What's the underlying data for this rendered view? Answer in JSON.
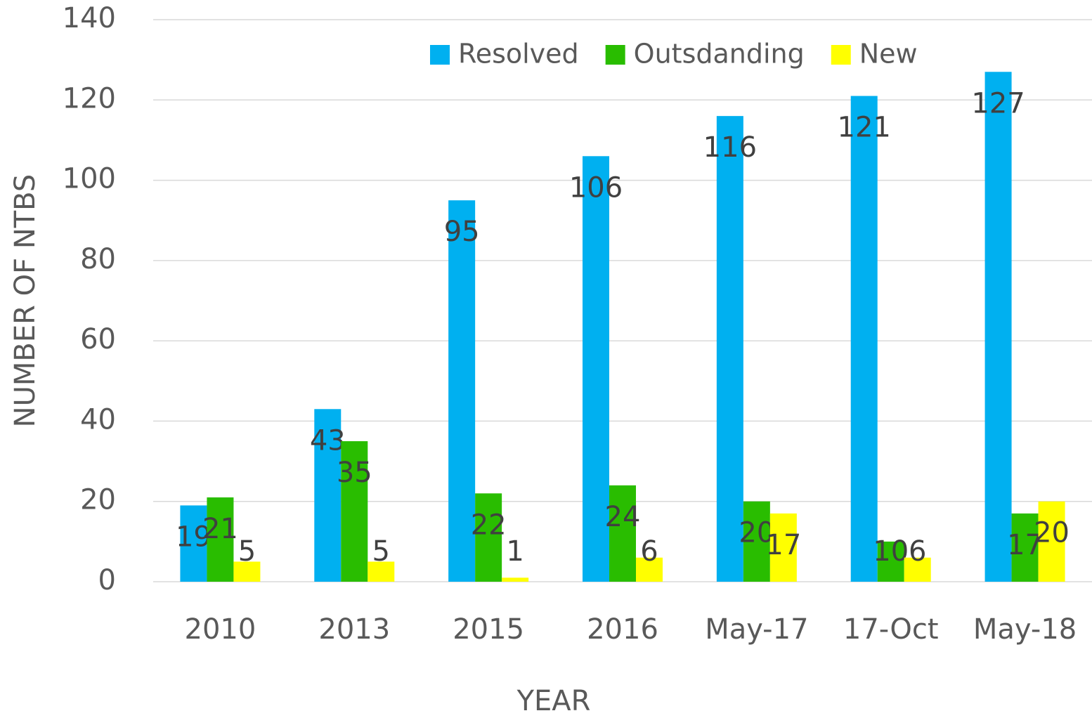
{
  "chart_data": {
    "type": "bar",
    "x_label": "YEAR",
    "y_label": "NUMBER OF NTBS",
    "categories": [
      "2010",
      "2013",
      "2015",
      "2016",
      "May-17",
      "17-Oct",
      "May-18"
    ],
    "series": [
      {
        "name": "Resolved",
        "color": "#00b0f0",
        "values": [
          19,
          43,
          95,
          106,
          116,
          121,
          127
        ]
      },
      {
        "name": "Outsdanding",
        "color": "#29bd00",
        "values": [
          21,
          35,
          22,
          24,
          20,
          10,
          17
        ]
      },
      {
        "name": "New",
        "color": "#ffff00",
        "values": [
          5,
          5,
          1,
          6,
          17,
          6,
          20
        ]
      }
    ],
    "ylim": [
      0,
      140
    ],
    "yticks": [
      0,
      20,
      40,
      60,
      80,
      100,
      120,
      140
    ],
    "grid": true,
    "legend": "top",
    "data_labels": true
  }
}
